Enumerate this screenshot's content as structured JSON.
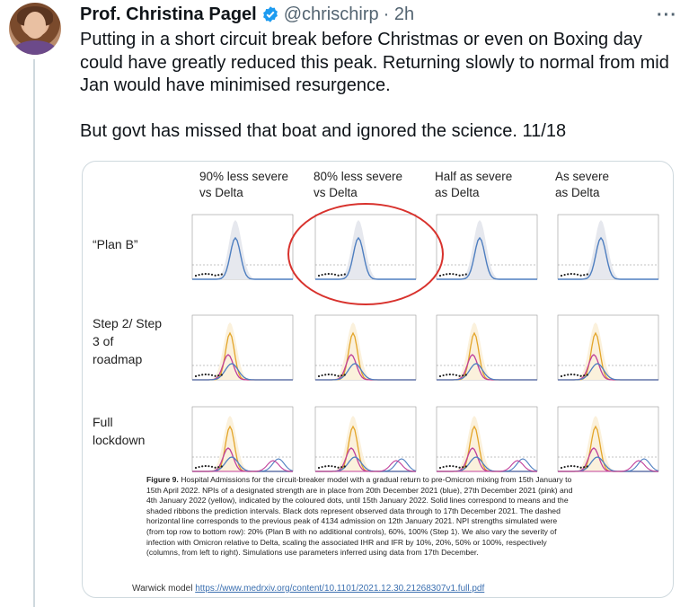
{
  "author": {
    "name": "Prof. Christina Pagel",
    "handle": "@chrischirp",
    "time": "· 2h",
    "verified_icon": "verified-badge-icon",
    "more_label": "···"
  },
  "tweet": {
    "paragraph1": "Putting in a short circuit break before Christmas or even on Boxing day could have greatly reduced this peak. Returning slowly to normal from mid Jan would have minimised resurgence.",
    "paragraph2": "But govt has missed that boat and ignored the science. 11/18"
  },
  "figure": {
    "columns": [
      {
        "line1": "90% less severe",
        "line2": "vs Delta"
      },
      {
        "line1": "80% less severe",
        "line2": "vs Delta"
      },
      {
        "line1": "Half as severe",
        "line2": "as Delta"
      },
      {
        "line1": "As severe",
        "line2": "as Delta"
      }
    ],
    "rows": [
      {
        "line1": "“Plan B”",
        "line2": "",
        "line3": ""
      },
      {
        "line1": "Step 2/ Step",
        "line2": "3 of",
        "line3": "roadmap"
      },
      {
        "line1": "Full",
        "line2": "lockdown",
        "line3": ""
      }
    ],
    "highlight_color": "#d8322d",
    "series_colors": {
      "blue": "#4f7fc0",
      "pink": "#c0409a",
      "yellow": "#e3a52a",
      "dots": "#222222"
    },
    "caption_title": "Figure 9.",
    "caption": "Hospital Admissions for the circuit-breaker model with a gradual return to pre-Omicron mixing from 15th January to 15th April 2022. NPIs of a designated strength are in place from 20th December 2021 (blue), 27th December 2021 (pink) and 4th January 2022 (yellow), indicated by the coloured dots, until 15th January 2022. Solid lines correspond to means and the shaded ribbons the prediction intervals. Black dots represent observed data through to 17th December 2021. The dashed horizontal line corresponds to the previous peak of 4134 admission on 12th January 2021. NPI strengths simulated were (from top row to bottom row): 20% (Plan B with no additional controls), 60%, 100% (Step 1). We also vary the severity of infection with Omicron relative to Delta, scaling the associated IHR and IFR by 10%, 20%, 50% or 100%, respectively (columns, from left to right). Simulations use parameters inferred using data from 17th December.",
    "footer_label": "Warwick model",
    "footer_link": "https://www.medrxiv.org/content/10.1101/2021.12.30.21268307v1.full.pdf"
  }
}
